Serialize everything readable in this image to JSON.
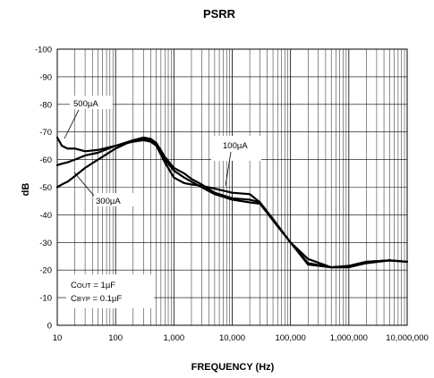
{
  "chart_data": {
    "type": "line",
    "title": "PSRR",
    "xlabel": "FREQUENCY (Hz)",
    "ylabel": "dB",
    "x_scale": "log",
    "xlim": [
      10,
      10000000
    ],
    "ylim": [
      0,
      -100
    ],
    "x_ticks": [
      "10",
      "100",
      "1,000",
      "10,000",
      "100,000",
      "1,000,000",
      "10,000,000"
    ],
    "y_ticks": [
      "0",
      "-10",
      "-20",
      "-30",
      "-40",
      "-50",
      "-60",
      "-70",
      "-80",
      "-90",
      "-100"
    ],
    "grid": true,
    "series": [
      {
        "name": "500µA",
        "x": [
          10,
          12,
          15,
          20,
          30,
          50,
          100,
          200,
          300,
          400,
          500,
          700,
          1000,
          1500,
          2000,
          3000,
          5000,
          10000,
          20000,
          30000,
          50000,
          100000,
          200000,
          500000,
          1000000,
          2000000,
          5000000,
          10000000
        ],
        "values": [
          -68,
          -65,
          -64,
          -64,
          -63,
          -63.5,
          -65,
          -67,
          -67.5,
          -67,
          -65,
          -59,
          -53.5,
          -51.5,
          -51,
          -50.5,
          -49.5,
          -48,
          -47.5,
          -44.5,
          -38,
          -30,
          -24,
          -21,
          -21,
          -22.5,
          -23.5,
          -23
        ]
      },
      {
        "name": "300µA",
        "x": [
          10,
          12,
          15,
          20,
          30,
          50,
          100,
          200,
          300,
          400,
          500,
          700,
          1000,
          1500,
          2000,
          3000,
          5000,
          10000,
          20000,
          30000,
          50000,
          100000,
          200000,
          500000,
          1000000,
          2000000,
          5000000,
          10000000
        ],
        "values": [
          -50,
          -51,
          -52,
          -54,
          -57,
          -60,
          -64,
          -67,
          -68,
          -67.5,
          -66,
          -61,
          -57,
          -55,
          -53,
          -51,
          -48,
          -46,
          -45.5,
          -44.5,
          -38.5,
          -30,
          -22,
          -21,
          -21.5,
          -23,
          -23.5,
          -23
        ]
      },
      {
        "name": "100µA",
        "x": [
          10,
          12,
          15,
          20,
          30,
          50,
          100,
          200,
          300,
          400,
          500,
          700,
          1000,
          1500,
          2000,
          3000,
          5000,
          10000,
          20000,
          30000,
          50000,
          100000,
          200000,
          500000,
          1000000,
          2000000,
          5000000,
          10000000
        ],
        "values": [
          -58,
          -58.5,
          -59,
          -60,
          -61.5,
          -62.5,
          -65,
          -66.5,
          -67,
          -66.5,
          -65,
          -60,
          -56,
          -53.5,
          -52,
          -50,
          -47.5,
          -45.5,
          -44.5,
          -44,
          -38,
          -30,
          -22.5,
          -21,
          -21.5,
          -23,
          -23.5,
          -23
        ]
      }
    ],
    "annotations": [
      {
        "text": "500µA"
      },
      {
        "text": "300µA"
      },
      {
        "text": "100µA"
      }
    ],
    "legend_box": {
      "line1_prefix": "C",
      "line1_sub": "OUT",
      "line1_suffix": " = 1µF",
      "line2_prefix": "C",
      "line2_sub": "BYP",
      "line2_suffix": " = 0.1µF"
    }
  }
}
